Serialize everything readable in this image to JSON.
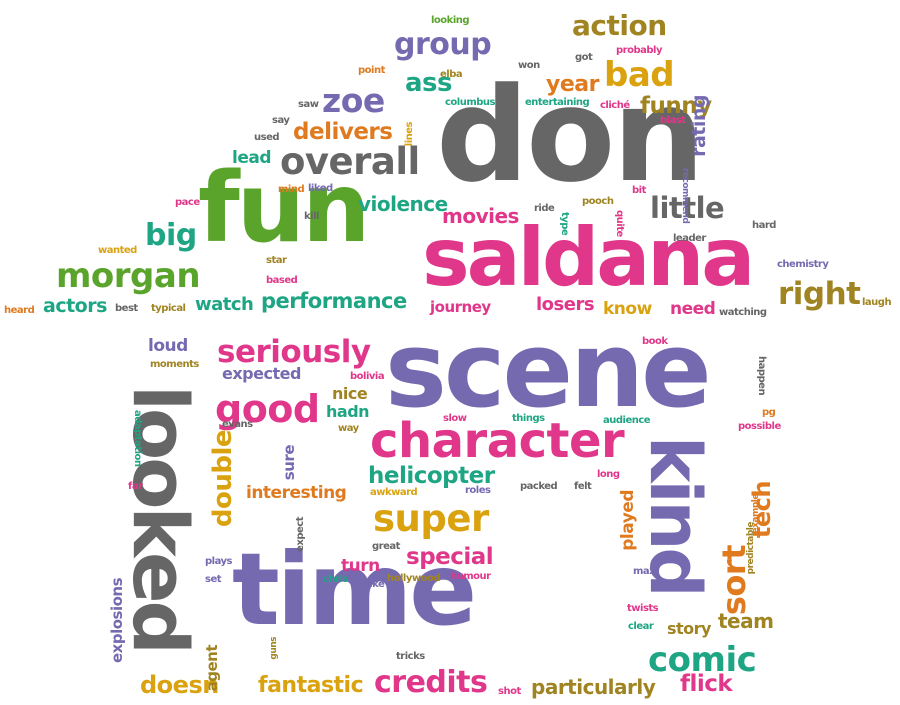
{
  "colors": {
    "gray": "#666666",
    "pink": "#e0378a",
    "purple": "#7569b0",
    "green": "#5aa42c",
    "orange": "#e07a1f",
    "gold": "#d9a20e",
    "teal": "#1ea584",
    "olive": "#a08422"
  },
  "words": [
    {
      "text": "don",
      "color": "gray",
      "name": "word-don"
    },
    {
      "text": "fun",
      "color": "green",
      "name": "word-fun"
    },
    {
      "text": "saldana",
      "color": "pink",
      "name": "word-saldana"
    },
    {
      "text": "scene",
      "color": "purple",
      "name": "word-scene"
    },
    {
      "text": "time",
      "color": "purple",
      "name": "word-time"
    },
    {
      "text": "looked",
      "color": "gray",
      "name": "word-looked"
    },
    {
      "text": "kind",
      "color": "purple",
      "name": "word-kind"
    },
    {
      "text": "character",
      "color": "pink",
      "name": "word-character"
    },
    {
      "text": "overall",
      "color": "gray",
      "name": "word-overall"
    },
    {
      "text": "morgan",
      "color": "green",
      "name": "word-morgan"
    },
    {
      "text": "seriously",
      "color": "pink",
      "name": "word-seriously"
    },
    {
      "text": "good",
      "color": "pink",
      "name": "word-good"
    },
    {
      "text": "super",
      "color": "gold",
      "name": "word-super"
    },
    {
      "text": "action",
      "color": "olive",
      "name": "word-action"
    },
    {
      "text": "bad",
      "color": "gold",
      "name": "word-bad"
    },
    {
      "text": "group",
      "color": "purple",
      "name": "word-group"
    },
    {
      "text": "little",
      "color": "gray",
      "name": "word-little"
    },
    {
      "text": "right",
      "color": "olive",
      "name": "word-right"
    },
    {
      "text": "big",
      "color": "teal",
      "name": "word-big"
    },
    {
      "text": "comic",
      "color": "teal",
      "name": "word-comic"
    },
    {
      "text": "credits",
      "color": "pink",
      "name": "word-credits"
    },
    {
      "text": "zoe",
      "color": "purple",
      "name": "word-zoe"
    },
    {
      "text": "ass",
      "color": "teal",
      "name": "word-ass"
    },
    {
      "text": "double",
      "color": "gold",
      "name": "word-double"
    },
    {
      "text": "sort",
      "color": "orange",
      "name": "word-sort"
    },
    {
      "text": "tech",
      "color": "orange",
      "name": "word-tech"
    },
    {
      "text": "helicopter",
      "color": "teal",
      "name": "word-helicopter"
    },
    {
      "text": "delivers",
      "color": "orange",
      "name": "word-delivers"
    },
    {
      "text": "funny",
      "color": "olive",
      "name": "word-funny"
    },
    {
      "text": "performance",
      "color": "teal",
      "name": "word-performance"
    },
    {
      "text": "movies",
      "color": "pink",
      "name": "word-movies"
    },
    {
      "text": "violence",
      "color": "teal",
      "name": "word-violence"
    },
    {
      "text": "special",
      "color": "pink",
      "name": "word-special"
    },
    {
      "text": "flick",
      "color": "pink",
      "name": "word-flick"
    },
    {
      "text": "fantastic",
      "color": "gold",
      "name": "word-fantastic"
    },
    {
      "text": "doesn",
      "color": "gold",
      "name": "word-doesn"
    },
    {
      "text": "particularly",
      "color": "olive",
      "name": "word-particularly"
    },
    {
      "text": "interesting",
      "color": "orange",
      "name": "word-interesting"
    },
    {
      "text": "actors",
      "color": "teal",
      "name": "word-actors"
    },
    {
      "text": "year",
      "color": "orange",
      "name": "word-year"
    },
    {
      "text": "lead",
      "color": "teal",
      "name": "word-lead"
    },
    {
      "text": "rating",
      "color": "purple",
      "name": "word-rating"
    },
    {
      "text": "watch",
      "color": "teal",
      "name": "word-watch"
    },
    {
      "text": "need",
      "color": "pink",
      "name": "word-need"
    },
    {
      "text": "know",
      "color": "gold",
      "name": "word-know"
    },
    {
      "text": "losers",
      "color": "pink",
      "name": "word-losers"
    },
    {
      "text": "journey",
      "color": "pink",
      "name": "word-journey"
    },
    {
      "text": "team",
      "color": "olive",
      "name": "word-team"
    },
    {
      "text": "story",
      "color": "olive",
      "name": "word-story"
    },
    {
      "text": "played",
      "color": "orange",
      "name": "word-played"
    },
    {
      "text": "turn",
      "color": "pink",
      "name": "word-turn"
    },
    {
      "text": "agent",
      "color": "olive",
      "name": "word-agent"
    },
    {
      "text": "explosions",
      "color": "purple",
      "name": "word-explosions"
    },
    {
      "text": "expected",
      "color": "purple",
      "name": "word-expected"
    },
    {
      "text": "loud",
      "color": "purple",
      "name": "word-loud"
    },
    {
      "text": "nice",
      "color": "olive",
      "name": "word-nice"
    },
    {
      "text": "hadn",
      "color": "teal",
      "name": "word-hadn"
    },
    {
      "text": "sure",
      "color": "purple",
      "name": "word-sure"
    },
    {
      "text": "looking",
      "color": "green",
      "name": "word-looking"
    },
    {
      "text": "point",
      "color": "orange",
      "name": "word-point"
    },
    {
      "text": "won",
      "color": "gray",
      "name": "word-won"
    },
    {
      "text": "got",
      "color": "gray",
      "name": "word-got"
    },
    {
      "text": "probably",
      "color": "pink",
      "name": "word-probably"
    },
    {
      "text": "elba",
      "color": "olive",
      "name": "word-elba"
    },
    {
      "text": "saw",
      "color": "gray",
      "name": "word-saw"
    },
    {
      "text": "say",
      "color": "gray",
      "name": "word-say"
    },
    {
      "text": "used",
      "color": "gray",
      "name": "word-used"
    },
    {
      "text": "lines",
      "color": "gold",
      "name": "word-lines"
    },
    {
      "text": "columbus",
      "color": "teal",
      "name": "word-columbus"
    },
    {
      "text": "entertaining",
      "color": "teal",
      "name": "word-entertaining"
    },
    {
      "text": "cliché",
      "color": "pink",
      "name": "word-cliche"
    },
    {
      "text": "blast",
      "color": "pink",
      "name": "word-blast"
    },
    {
      "text": "recommend",
      "color": "purple",
      "name": "word-recommend"
    },
    {
      "text": "mind",
      "color": "orange",
      "name": "word-mind"
    },
    {
      "text": "liked",
      "color": "purple",
      "name": "word-liked"
    },
    {
      "text": "bit",
      "color": "pink",
      "name": "word-bit"
    },
    {
      "text": "quite",
      "color": "pink",
      "name": "word-quite"
    },
    {
      "text": "pooch",
      "color": "olive",
      "name": "word-pooch"
    },
    {
      "text": "pace",
      "color": "pink",
      "name": "word-pace"
    },
    {
      "text": "kill",
      "color": "gray",
      "name": "word-kill"
    },
    {
      "text": "ride",
      "color": "gray",
      "name": "word-ride"
    },
    {
      "text": "type",
      "color": "teal",
      "name": "word-type"
    },
    {
      "text": "hard",
      "color": "gray",
      "name": "word-hard"
    },
    {
      "text": "leader",
      "color": "gray",
      "name": "word-leader"
    },
    {
      "text": "wanted",
      "color": "gold",
      "name": "word-wanted"
    },
    {
      "text": "star",
      "color": "olive",
      "name": "word-star"
    },
    {
      "text": "based",
      "color": "pink",
      "name": "word-based"
    },
    {
      "text": "chemistry",
      "color": "purple",
      "name": "word-chemistry"
    },
    {
      "text": "heard",
      "color": "orange",
      "name": "word-heard"
    },
    {
      "text": "best",
      "color": "gray",
      "name": "word-best"
    },
    {
      "text": "typical",
      "color": "olive",
      "name": "word-typical"
    },
    {
      "text": "laugh",
      "color": "olive",
      "name": "word-laugh"
    },
    {
      "text": "watching",
      "color": "gray",
      "name": "word-watching"
    },
    {
      "text": "moments",
      "color": "olive",
      "name": "word-moments"
    },
    {
      "text": "bolivia",
      "color": "pink",
      "name": "word-bolivia"
    },
    {
      "text": "book",
      "color": "pink",
      "name": "word-book"
    },
    {
      "text": "happen",
      "color": "gray",
      "name": "word-happen"
    },
    {
      "text": "adaptation",
      "color": "teal",
      "name": "word-adaptation"
    },
    {
      "text": "evans",
      "color": "gray",
      "name": "word-evans"
    },
    {
      "text": "way",
      "color": "olive",
      "name": "word-way"
    },
    {
      "text": "slow",
      "color": "pink",
      "name": "word-slow"
    },
    {
      "text": "things",
      "color": "teal",
      "name": "word-things"
    },
    {
      "text": "audience",
      "color": "teal",
      "name": "word-audience"
    },
    {
      "text": "possible",
      "color": "pink",
      "name": "word-possible"
    },
    {
      "text": "pg",
      "color": "orange",
      "name": "word-pg"
    },
    {
      "text": "far",
      "color": "pink",
      "name": "word-far"
    },
    {
      "text": "awkward",
      "color": "gold",
      "name": "word-awkward"
    },
    {
      "text": "packed",
      "color": "gray",
      "name": "word-packed"
    },
    {
      "text": "felt",
      "color": "gray",
      "name": "word-felt"
    },
    {
      "text": "roles",
      "color": "purple",
      "name": "word-roles"
    },
    {
      "text": "long",
      "color": "pink",
      "name": "word-long"
    },
    {
      "text": "example",
      "color": "orange",
      "name": "word-example"
    },
    {
      "text": "expect",
      "color": "gray",
      "name": "word-expect"
    },
    {
      "text": "great",
      "color": "gray",
      "name": "word-great"
    },
    {
      "text": "plays",
      "color": "purple",
      "name": "word-plays"
    },
    {
      "text": "set",
      "color": "purple",
      "name": "word-set"
    },
    {
      "text": "chris",
      "color": "teal",
      "name": "word-chris"
    },
    {
      "text": "make",
      "color": "purple",
      "name": "word-make"
    },
    {
      "text": "hollywood",
      "color": "olive",
      "name": "word-hollywood"
    },
    {
      "text": "humour",
      "color": "pink",
      "name": "word-humour"
    },
    {
      "text": "max",
      "color": "purple",
      "name": "word-max"
    },
    {
      "text": "predictable",
      "color": "olive",
      "name": "word-predictable"
    },
    {
      "text": "twists",
      "color": "pink",
      "name": "word-twists"
    },
    {
      "text": "clear",
      "color": "teal",
      "name": "word-clear"
    },
    {
      "text": "guns",
      "color": "olive",
      "name": "word-guns"
    },
    {
      "text": "tricks",
      "color": "gray",
      "name": "word-tricks"
    },
    {
      "text": "shot",
      "color": "pink",
      "name": "word-shot"
    }
  ]
}
